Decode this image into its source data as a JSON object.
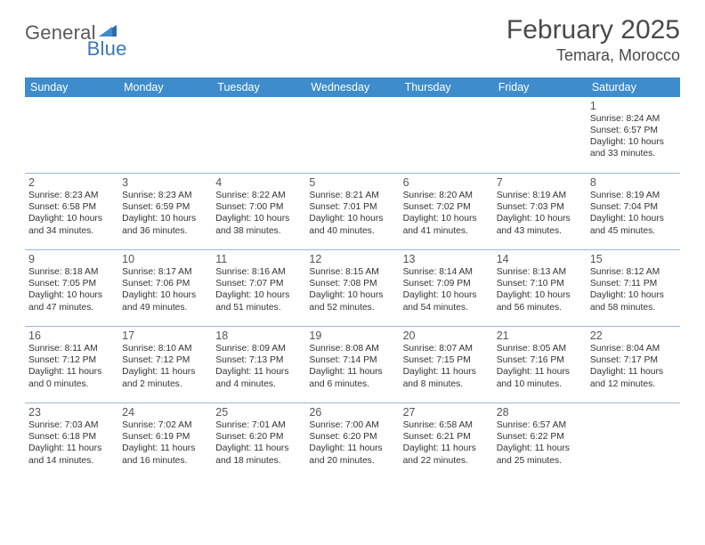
{
  "logo": {
    "general": "General",
    "blue": "Blue"
  },
  "title": "February 2025",
  "location": "Temara, Morocco",
  "days_of_week": [
    "Sunday",
    "Monday",
    "Tuesday",
    "Wednesday",
    "Thursday",
    "Friday",
    "Saturday"
  ],
  "colors": {
    "header_bar": "#3e8ccc",
    "cell_border": "#9db8d4",
    "logo_blue": "#3a78b8",
    "text": "#333333",
    "title_text": "#4a4a4a"
  },
  "weeks": [
    [
      null,
      null,
      null,
      null,
      null,
      null,
      {
        "n": "1",
        "sr": "Sunrise: 8:24 AM",
        "ss": "Sunset: 6:57 PM",
        "dl1": "Daylight: 10 hours",
        "dl2": "and 33 minutes."
      }
    ],
    [
      {
        "n": "2",
        "sr": "Sunrise: 8:23 AM",
        "ss": "Sunset: 6:58 PM",
        "dl1": "Daylight: 10 hours",
        "dl2": "and 34 minutes."
      },
      {
        "n": "3",
        "sr": "Sunrise: 8:23 AM",
        "ss": "Sunset: 6:59 PM",
        "dl1": "Daylight: 10 hours",
        "dl2": "and 36 minutes."
      },
      {
        "n": "4",
        "sr": "Sunrise: 8:22 AM",
        "ss": "Sunset: 7:00 PM",
        "dl1": "Daylight: 10 hours",
        "dl2": "and 38 minutes."
      },
      {
        "n": "5",
        "sr": "Sunrise: 8:21 AM",
        "ss": "Sunset: 7:01 PM",
        "dl1": "Daylight: 10 hours",
        "dl2": "and 40 minutes."
      },
      {
        "n": "6",
        "sr": "Sunrise: 8:20 AM",
        "ss": "Sunset: 7:02 PM",
        "dl1": "Daylight: 10 hours",
        "dl2": "and 41 minutes."
      },
      {
        "n": "7",
        "sr": "Sunrise: 8:19 AM",
        "ss": "Sunset: 7:03 PM",
        "dl1": "Daylight: 10 hours",
        "dl2": "and 43 minutes."
      },
      {
        "n": "8",
        "sr": "Sunrise: 8:19 AM",
        "ss": "Sunset: 7:04 PM",
        "dl1": "Daylight: 10 hours",
        "dl2": "and 45 minutes."
      }
    ],
    [
      {
        "n": "9",
        "sr": "Sunrise: 8:18 AM",
        "ss": "Sunset: 7:05 PM",
        "dl1": "Daylight: 10 hours",
        "dl2": "and 47 minutes."
      },
      {
        "n": "10",
        "sr": "Sunrise: 8:17 AM",
        "ss": "Sunset: 7:06 PM",
        "dl1": "Daylight: 10 hours",
        "dl2": "and 49 minutes."
      },
      {
        "n": "11",
        "sr": "Sunrise: 8:16 AM",
        "ss": "Sunset: 7:07 PM",
        "dl1": "Daylight: 10 hours",
        "dl2": "and 51 minutes."
      },
      {
        "n": "12",
        "sr": "Sunrise: 8:15 AM",
        "ss": "Sunset: 7:08 PM",
        "dl1": "Daylight: 10 hours",
        "dl2": "and 52 minutes."
      },
      {
        "n": "13",
        "sr": "Sunrise: 8:14 AM",
        "ss": "Sunset: 7:09 PM",
        "dl1": "Daylight: 10 hours",
        "dl2": "and 54 minutes."
      },
      {
        "n": "14",
        "sr": "Sunrise: 8:13 AM",
        "ss": "Sunset: 7:10 PM",
        "dl1": "Daylight: 10 hours",
        "dl2": "and 56 minutes."
      },
      {
        "n": "15",
        "sr": "Sunrise: 8:12 AM",
        "ss": "Sunset: 7:11 PM",
        "dl1": "Daylight: 10 hours",
        "dl2": "and 58 minutes."
      }
    ],
    [
      {
        "n": "16",
        "sr": "Sunrise: 8:11 AM",
        "ss": "Sunset: 7:12 PM",
        "dl1": "Daylight: 11 hours",
        "dl2": "and 0 minutes."
      },
      {
        "n": "17",
        "sr": "Sunrise: 8:10 AM",
        "ss": "Sunset: 7:12 PM",
        "dl1": "Daylight: 11 hours",
        "dl2": "and 2 minutes."
      },
      {
        "n": "18",
        "sr": "Sunrise: 8:09 AM",
        "ss": "Sunset: 7:13 PM",
        "dl1": "Daylight: 11 hours",
        "dl2": "and 4 minutes."
      },
      {
        "n": "19",
        "sr": "Sunrise: 8:08 AM",
        "ss": "Sunset: 7:14 PM",
        "dl1": "Daylight: 11 hours",
        "dl2": "and 6 minutes."
      },
      {
        "n": "20",
        "sr": "Sunrise: 8:07 AM",
        "ss": "Sunset: 7:15 PM",
        "dl1": "Daylight: 11 hours",
        "dl2": "and 8 minutes."
      },
      {
        "n": "21",
        "sr": "Sunrise: 8:05 AM",
        "ss": "Sunset: 7:16 PM",
        "dl1": "Daylight: 11 hours",
        "dl2": "and 10 minutes."
      },
      {
        "n": "22",
        "sr": "Sunrise: 8:04 AM",
        "ss": "Sunset: 7:17 PM",
        "dl1": "Daylight: 11 hours",
        "dl2": "and 12 minutes."
      }
    ],
    [
      {
        "n": "23",
        "sr": "Sunrise: 7:03 AM",
        "ss": "Sunset: 6:18 PM",
        "dl1": "Daylight: 11 hours",
        "dl2": "and 14 minutes."
      },
      {
        "n": "24",
        "sr": "Sunrise: 7:02 AM",
        "ss": "Sunset: 6:19 PM",
        "dl1": "Daylight: 11 hours",
        "dl2": "and 16 minutes."
      },
      {
        "n": "25",
        "sr": "Sunrise: 7:01 AM",
        "ss": "Sunset: 6:20 PM",
        "dl1": "Daylight: 11 hours",
        "dl2": "and 18 minutes."
      },
      {
        "n": "26",
        "sr": "Sunrise: 7:00 AM",
        "ss": "Sunset: 6:20 PM",
        "dl1": "Daylight: 11 hours",
        "dl2": "and 20 minutes."
      },
      {
        "n": "27",
        "sr": "Sunrise: 6:58 AM",
        "ss": "Sunset: 6:21 PM",
        "dl1": "Daylight: 11 hours",
        "dl2": "and 22 minutes."
      },
      {
        "n": "28",
        "sr": "Sunrise: 6:57 AM",
        "ss": "Sunset: 6:22 PM",
        "dl1": "Daylight: 11 hours",
        "dl2": "and 25 minutes."
      },
      null
    ]
  ]
}
